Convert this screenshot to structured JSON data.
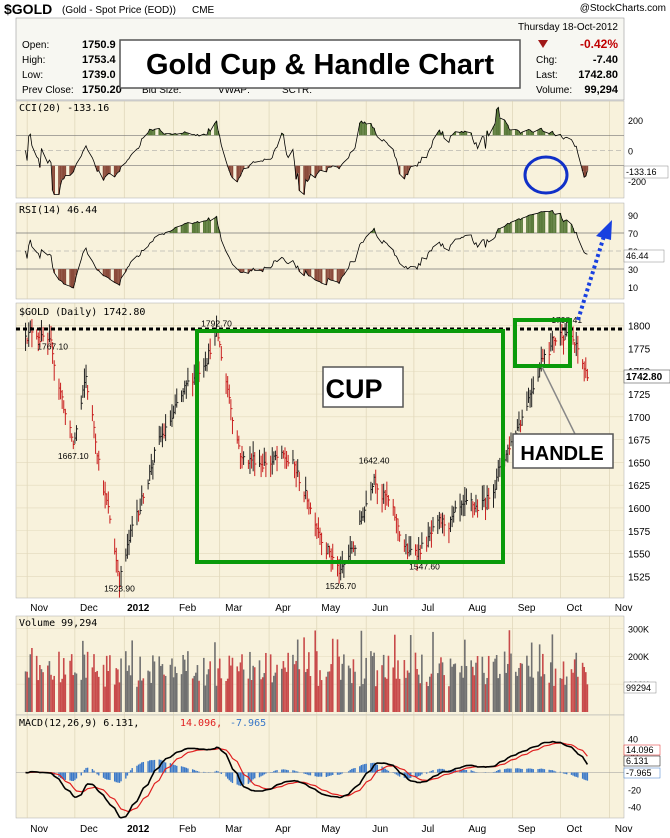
{
  "header": {
    "symbol": "$GOLD",
    "name": "(Gold - Spot Price (EOD))",
    "exchange": "CME",
    "watermark": "@StockCharts.com",
    "date": "Thursday  18-Oct-2012",
    "stats_left": [
      {
        "label": "Open:",
        "value": "1750.9"
      },
      {
        "label": "High:",
        "value": "1753.4"
      },
      {
        "label": "Low:",
        "value": "1739.0"
      }
    ],
    "prev_close_label": "Prev Close:",
    "prev_close": "1750.20",
    "bid_label": "Bid Size:",
    "vwap_label": "VWAP:",
    "sctr_label": "SCTR:",
    "change_pct": "-0.42%",
    "stats_right": [
      {
        "label": "Chg:",
        "value": "-7.40"
      },
      {
        "label": "Last:",
        "value": "1742.80"
      },
      {
        "label": "Volume:",
        "value": "99,294"
      }
    ]
  },
  "annotations": {
    "title": "Gold Cup & Handle Chart",
    "cup": "CUP",
    "handle": "HANDLE"
  },
  "colors": {
    "panel_bg": "#f8f2dc",
    "cup_box": "#0a9a0a",
    "ellipse": "#1030c8",
    "arrow": "#1840e0",
    "up_bar": "#202020",
    "down_bar": "#c81e1e",
    "osc_green": "#5a7a3a",
    "osc_red": "#8a4a3a",
    "macd_line": "#000000",
    "signal_line": "#e02020",
    "hist": "#3a78c8",
    "change_neg": "#c00000"
  },
  "chart_data": [
    {
      "type": "line",
      "name": "CCI(20)",
      "label": "CCI(20) -133.16",
      "current": "-133.16",
      "yticks": [
        "200",
        "0",
        "-200"
      ]
    },
    {
      "type": "line",
      "name": "RSI(14)",
      "label": "RSI(14) 46.44",
      "current": "46.44",
      "yticks": [
        "90",
        "70",
        "50",
        "30",
        "10"
      ]
    },
    {
      "type": "bar",
      "name": "$GOLD (Daily)",
      "label": "$GOLD (Daily) 1742.80",
      "current": "1742.80",
      "ylim": [
        1510,
        1815
      ],
      "yticks": [
        "1800",
        "1775",
        "1750",
        "1725",
        "1700",
        "1675",
        "1650",
        "1625",
        "1600",
        "1575",
        "1550",
        "1525"
      ],
      "resistance": 1796,
      "price_labels": [
        "1792.70",
        "1767.10",
        "1667.10",
        "1523.90",
        "1526.70",
        "1642.40",
        "1547.60",
        "1798.41"
      ],
      "key_points": [
        {
          "date": "2011-11-08",
          "value": 1795
        },
        {
          "date": "2011-11-17",
          "value": 1767.1
        },
        {
          "date": "2011-11-30",
          "value": 1667.1
        },
        {
          "date": "2011-12-08",
          "value": 1740
        },
        {
          "date": "2011-12-29",
          "value": 1523.9
        },
        {
          "date": "2012-01-20",
          "value": 1660
        },
        {
          "date": "2012-02-10",
          "value": 1730
        },
        {
          "date": "2012-02-28",
          "value": 1792.7
        },
        {
          "date": "2012-03-15",
          "value": 1655
        },
        {
          "date": "2012-04-15",
          "value": 1650
        },
        {
          "date": "2012-05-16",
          "value": 1526.7
        },
        {
          "date": "2012-05-25",
          "value": 1560
        },
        {
          "date": "2012-06-06",
          "value": 1642.4
        },
        {
          "date": "2012-06-28",
          "value": 1547.6
        },
        {
          "date": "2012-07-20",
          "value": 1580
        },
        {
          "date": "2012-08-15",
          "value": 1605
        },
        {
          "date": "2012-09-06",
          "value": 1700
        },
        {
          "date": "2012-09-21",
          "value": 1775
        },
        {
          "date": "2012-10-05",
          "value": 1798.41
        },
        {
          "date": "2012-10-18",
          "value": 1742.8
        }
      ]
    },
    {
      "type": "bar",
      "name": "Volume",
      "label": "Volume 99,294",
      "current": "99294",
      "yticks": [
        "300K",
        "200K",
        "100K"
      ]
    },
    {
      "type": "line",
      "name": "MACD(12,26,9)",
      "label_main": "MACD(12,26,9) 6.131,",
      "label_signal": "14.096,",
      "label_hist": "-7.965",
      "macd": "6.131",
      "signal": "14.096",
      "histogram": "-7.965",
      "yticks": [
        "40",
        "20",
        "0",
        "-20",
        "-40"
      ]
    }
  ],
  "x_axis": [
    "Nov",
    "Dec",
    "2012",
    "Feb",
    "Mar",
    "Apr",
    "May",
    "Jun",
    "Jul",
    "Aug",
    "Sep",
    "Oct",
    "Nov"
  ]
}
